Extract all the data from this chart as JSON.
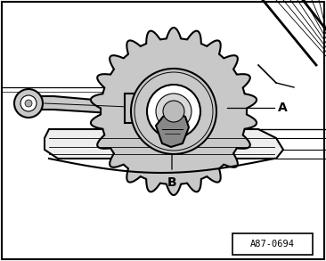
{
  "bg_color": "#ffffff",
  "border_color": "#000000",
  "gear_fill": "#c8c8c8",
  "gear_stroke": "#000000",
  "dark_fill": "#888888",
  "label_A": "A",
  "label_B": "B",
  "ref_code": "A87-0694",
  "fig_width": 3.66,
  "fig_height": 2.93,
  "dpi": 100
}
